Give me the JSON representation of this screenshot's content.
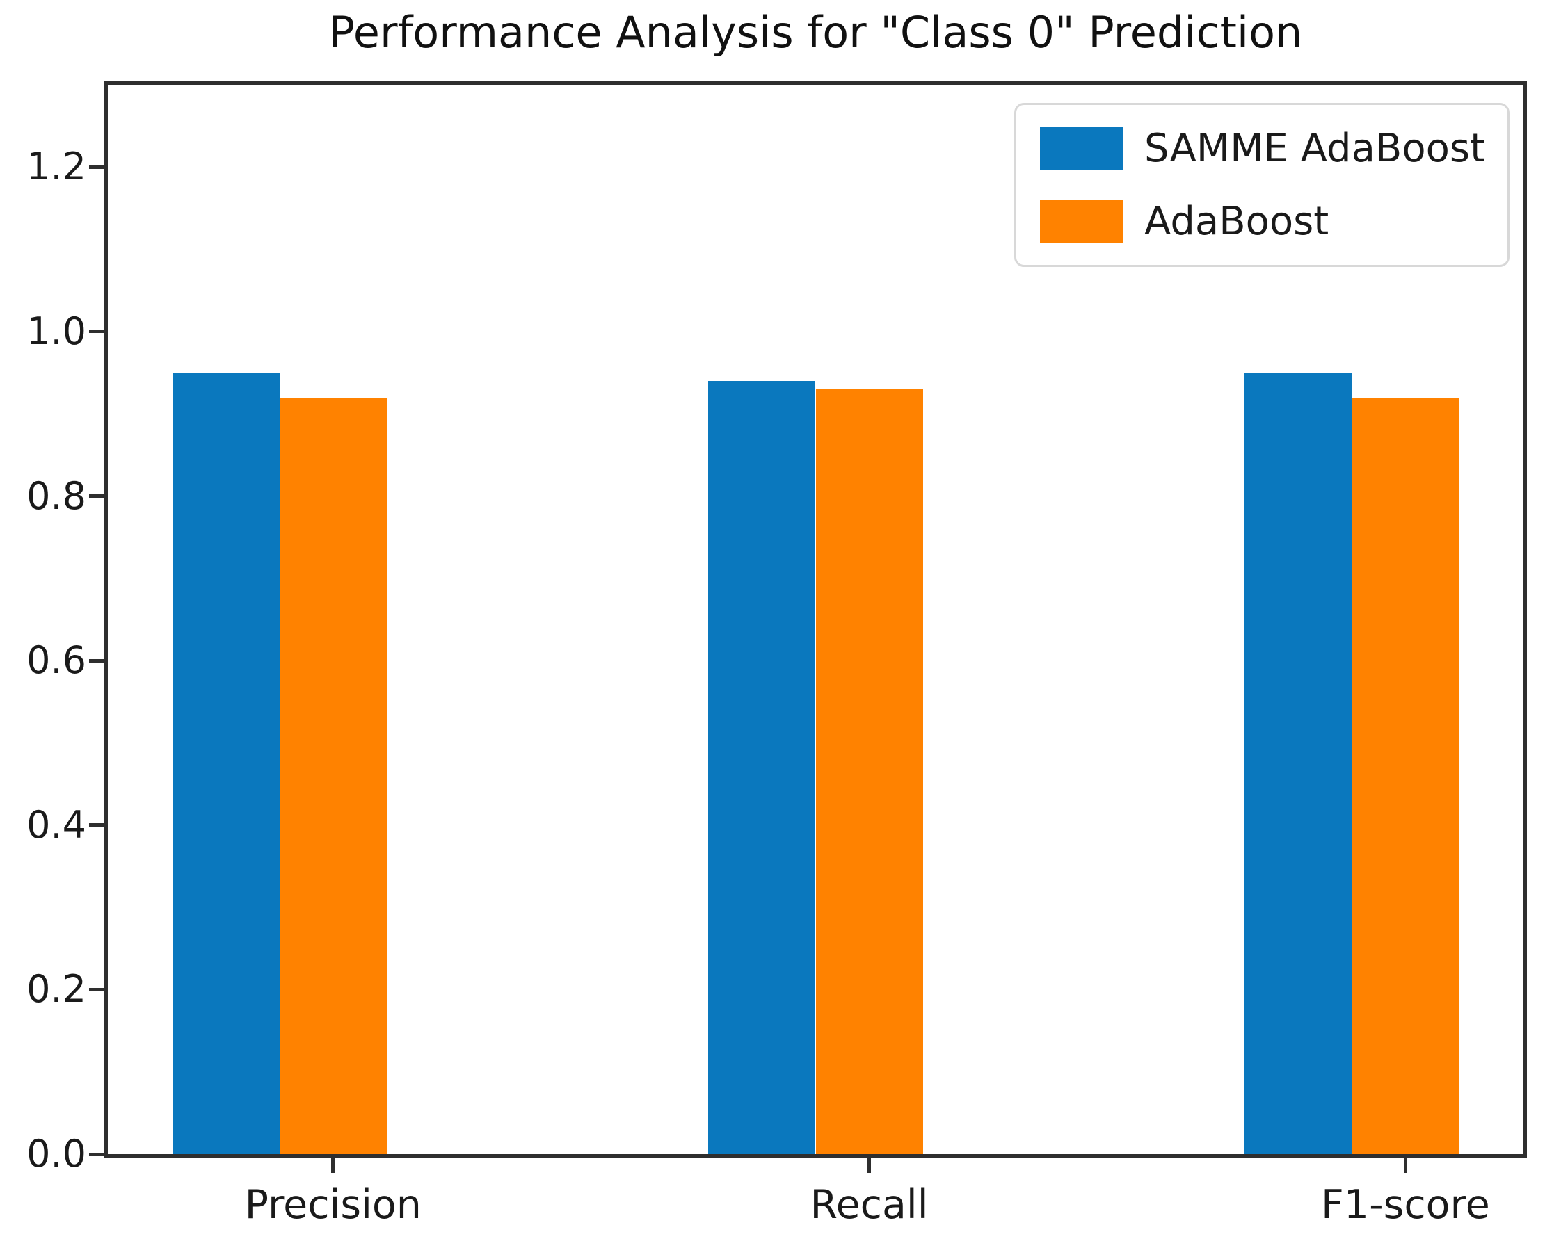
{
  "figure": {
    "title": "Performance Analysis for \"Class 0\" Prediction"
  },
  "chart_data": {
    "type": "bar",
    "title": "Performance Analysis for \"Class 0\" Prediction",
    "categories": [
      "Precision",
      "Recall",
      "F1-score"
    ],
    "series": [
      {
        "name": "SAMME AdaBoost",
        "color": "#0a78be",
        "values": [
          0.95,
          0.94,
          0.95
        ]
      },
      {
        "name": "AdaBoost",
        "color": "#ff8200",
        "values": [
          0.92,
          0.93,
          0.92
        ]
      }
    ],
    "xlabel": "",
    "ylabel": "",
    "ylim": [
      0,
      1.3
    ],
    "xlim": [
      -0.42,
      2.22
    ],
    "ytick_labels": [
      "0.0",
      "0.2",
      "0.4",
      "0.6",
      "0.8",
      "1.0",
      "1.2"
    ],
    "ytick_values": [
      0,
      0.2,
      0.4,
      0.6,
      0.8,
      1.0,
      1.2
    ],
    "bar_width_units": 0.2,
    "series_offsets": [
      -0.2,
      0.0
    ],
    "legend_position": "upper right",
    "grid": false
  }
}
